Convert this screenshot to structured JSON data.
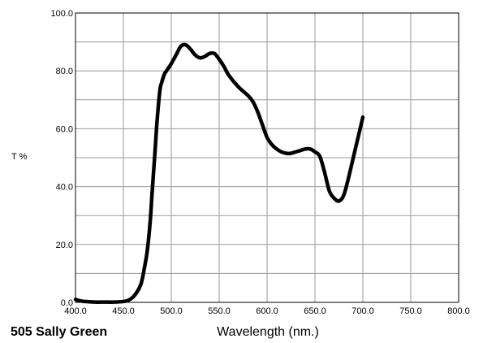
{
  "chart_data": {
    "type": "line",
    "title": "505 Sally Green",
    "xlabel": "Wavelength (nm.)",
    "ylabel": "T %",
    "xlim": [
      400,
      800
    ],
    "ylim": [
      0,
      100
    ],
    "grid": true,
    "x_ticks": [
      "400.0",
      "450.0",
      "500.0",
      "550.0",
      "600.0",
      "650.0",
      "700.0",
      "750.0",
      "800.0"
    ],
    "y_ticks": [
      "0.0",
      "20.0",
      "40.0",
      "60.0",
      "80.0",
      "100.0"
    ],
    "series": [
      {
        "color": "#000000",
        "x": [
          400,
          405,
          410,
          420,
          430,
          440,
          450,
          455,
          460,
          465,
          468,
          470,
          472,
          475,
          478,
          480,
          483,
          485,
          488,
          490,
          493,
          495,
          500,
          505,
          510,
          515,
          520,
          525,
          530,
          535,
          540,
          545,
          550,
          555,
          560,
          570,
          580,
          585,
          590,
          595,
          600,
          605,
          610,
          615,
          620,
          625,
          630,
          635,
          640,
          645,
          650,
          655,
          660,
          665,
          670,
          675,
          680,
          685,
          690,
          695,
          700
        ],
        "y": [
          1,
          0.5,
          0.3,
          0.1,
          0.1,
          0.1,
          0.3,
          0.7,
          1.8,
          4,
          6,
          8.5,
          12,
          18,
          28,
          38,
          52,
          62,
          73,
          76,
          79,
          80,
          82.5,
          85.5,
          88.5,
          89,
          87.5,
          85.5,
          84.5,
          85,
          86,
          86,
          84,
          81.5,
          78.5,
          74.5,
          71.5,
          69.5,
          66,
          61.5,
          57,
          54.5,
          53,
          52,
          51.5,
          51.5,
          52,
          52.5,
          53,
          53,
          52,
          50.5,
          45,
          38.5,
          36,
          35,
          37,
          43,
          50,
          57,
          64
        ]
      }
    ]
  }
}
